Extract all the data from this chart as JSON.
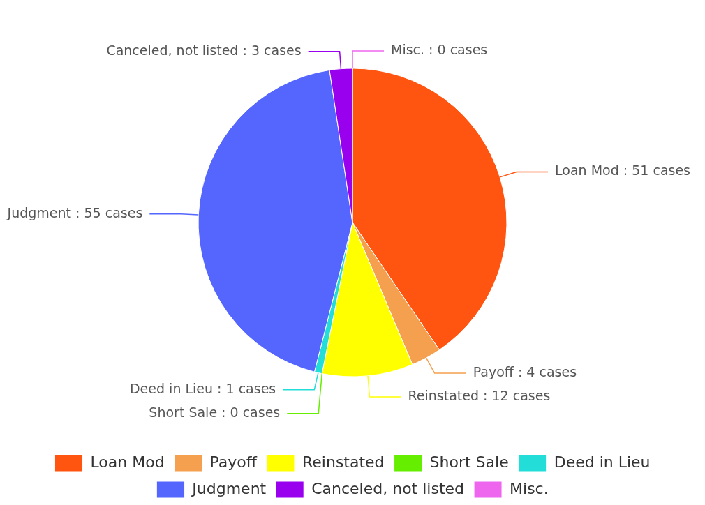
{
  "chart_data": {
    "type": "pie",
    "categories": [
      "Loan Mod",
      "Payoff",
      "Reinstated",
      "Short Sale",
      "Deed in Lieu",
      "Judgment",
      "Canceled, not listed",
      "Misc."
    ],
    "values": [
      51,
      4,
      12,
      0,
      1,
      55,
      3,
      0
    ],
    "colors": [
      "#ff5511",
      "#f4a04e",
      "#ffff00",
      "#66ee00",
      "#22ddd8",
      "#5566ff",
      "#9900ee",
      "#ee66ee"
    ],
    "value_labels": [
      "Loan Mod : 51 cases",
      "Payoff : 4 cases",
      "Reinstated : 12 cases",
      "Short Sale : 0 cases",
      "Deed in Lieu : 1 cases",
      "Judgment : 55 cases",
      "Canceled, not listed : 3 cases",
      "Misc. : 0 cases"
    ],
    "legend": "bottom"
  }
}
